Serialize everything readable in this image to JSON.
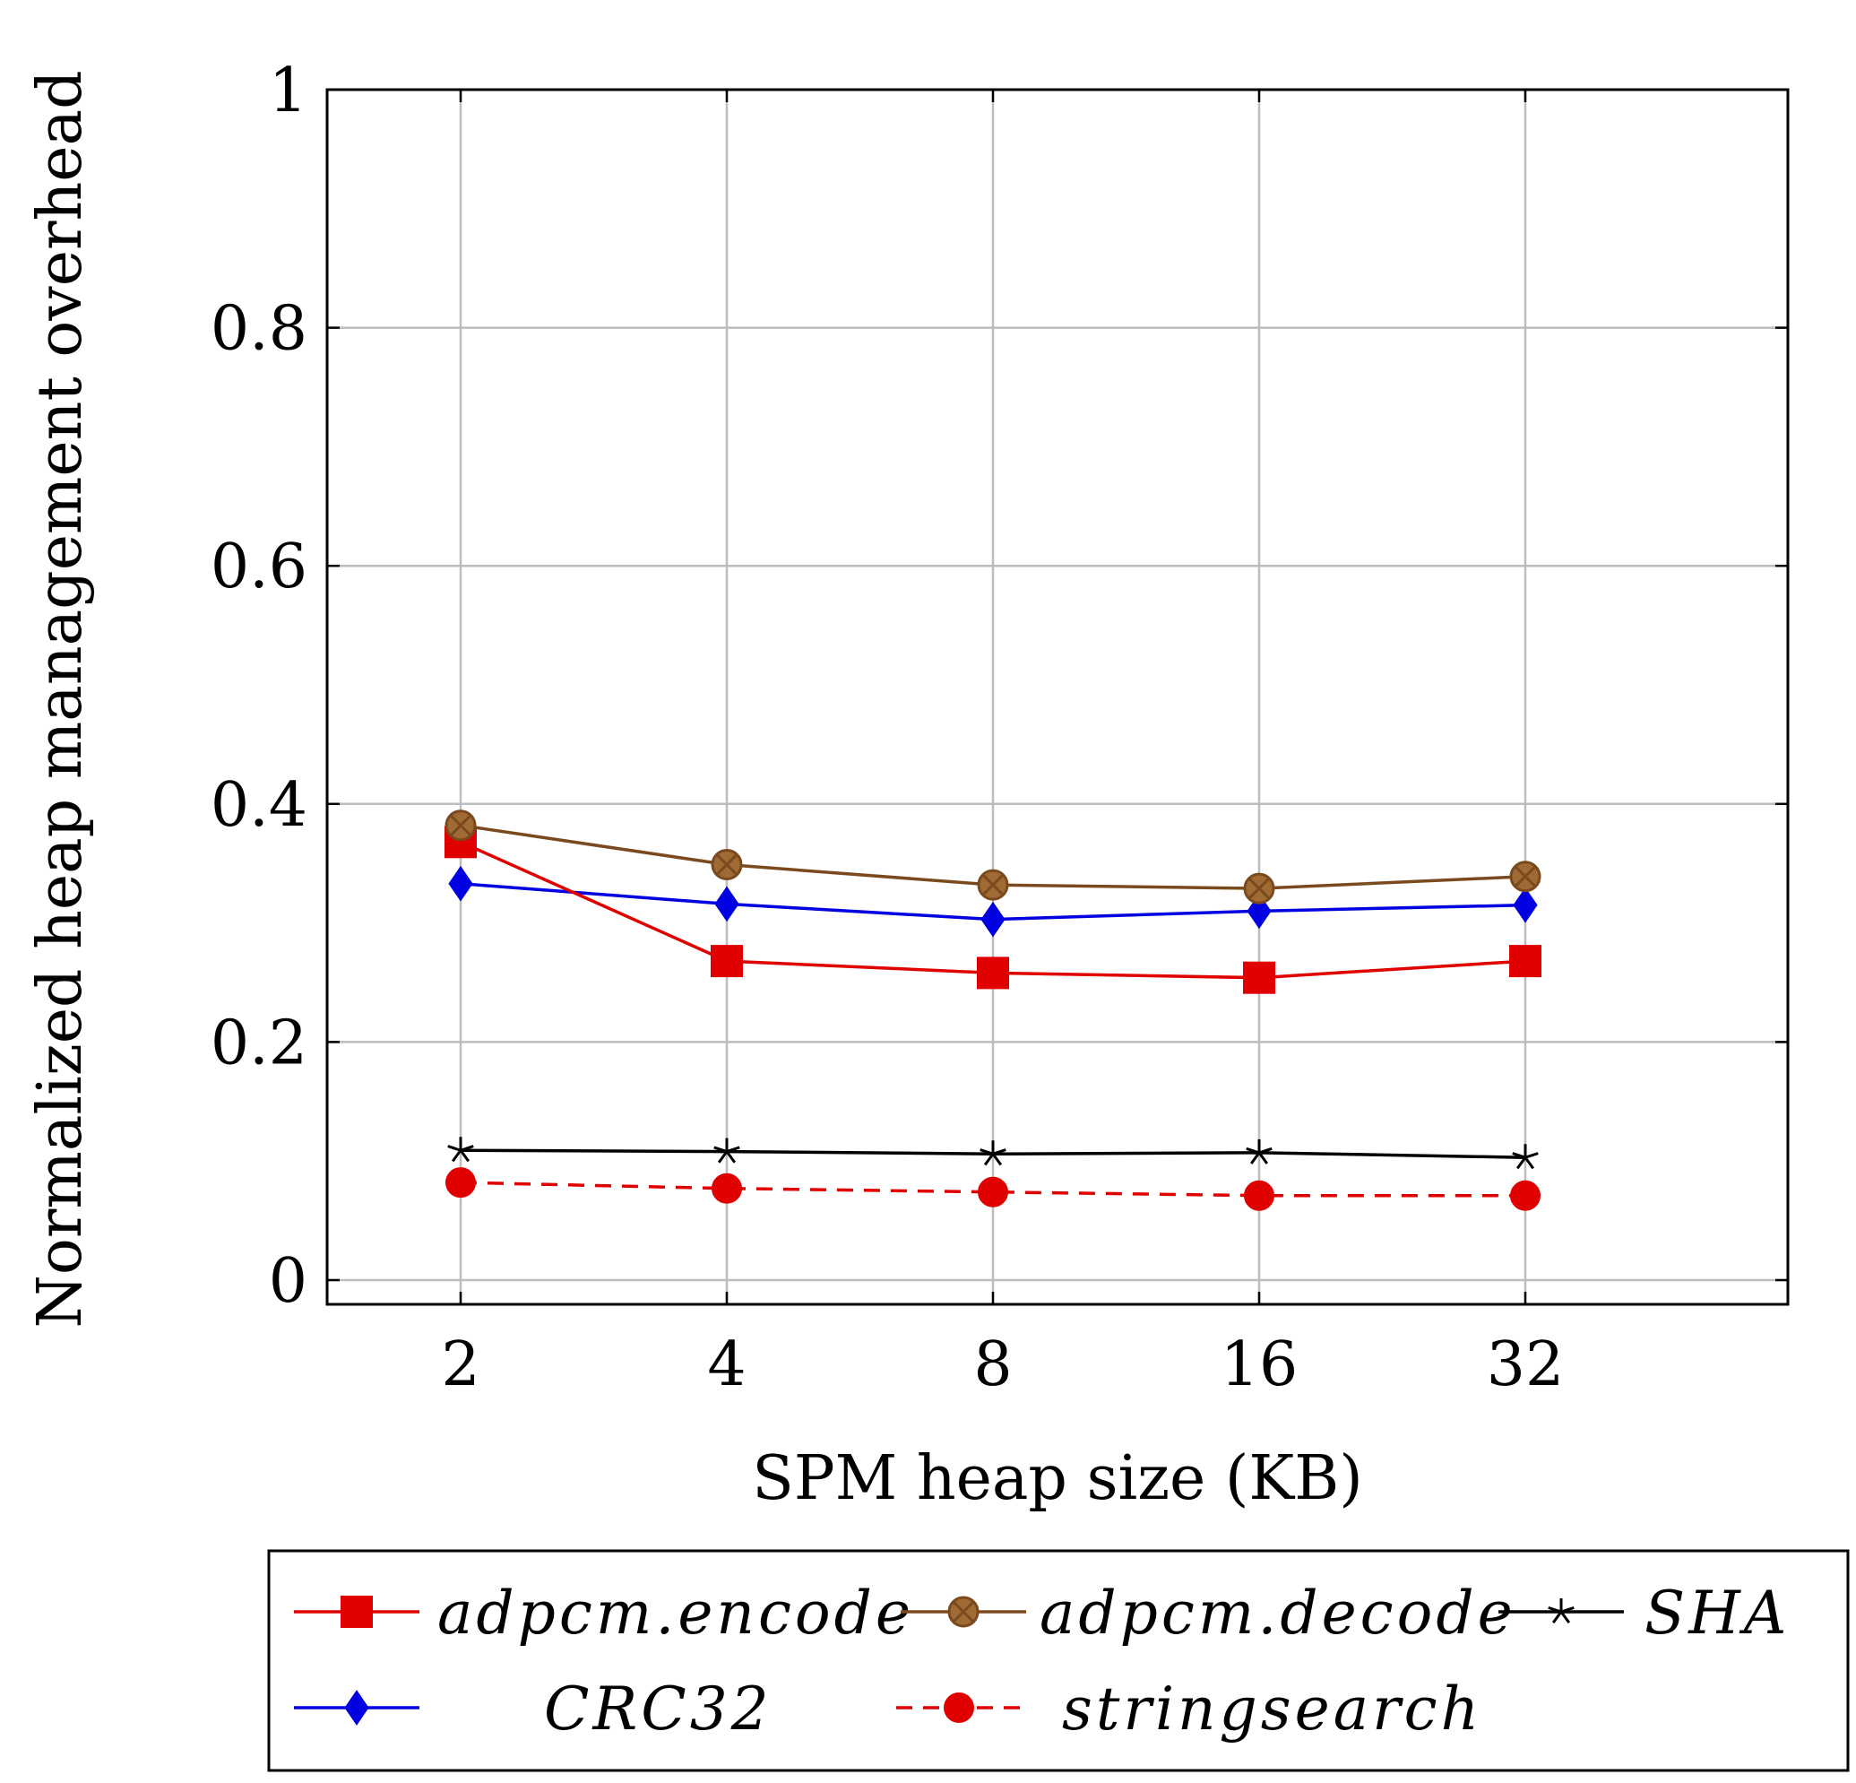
{
  "chart_data": {
    "type": "line",
    "title": "",
    "xlabel": "SPM heap size (KB)",
    "ylabel": "Normalized heap management overhead",
    "categories": [
      "2",
      "4",
      "8",
      "16",
      "32"
    ],
    "ylim": [
      0,
      1
    ],
    "yticks": [
      "0",
      "0.2",
      "0.4",
      "0.6",
      "0.8",
      "1"
    ],
    "ytick_values": [
      0,
      0.2,
      0.4,
      0.6,
      0.8,
      1
    ],
    "grid": true,
    "legend_position": "bottom",
    "series": [
      {
        "name": "adpcm.encode",
        "color": "#e00000",
        "marker": "square",
        "dash": "solid",
        "values": [
          0.368,
          0.268,
          0.258,
          0.254,
          0.268
        ]
      },
      {
        "name": "adpcm.decode",
        "color": "#7a4a1e",
        "marker": "circle-x",
        "dash": "solid",
        "values": [
          0.382,
          0.349,
          0.332,
          0.329,
          0.339
        ]
      },
      {
        "name": "SHA",
        "color": "#000000",
        "marker": "star",
        "dash": "solid",
        "values": [
          0.109,
          0.108,
          0.106,
          0.107,
          0.103
        ]
      },
      {
        "name": "CRC32",
        "color": "#0000e0",
        "marker": "diamond",
        "dash": "solid",
        "values": [
          0.333,
          0.316,
          0.303,
          0.31,
          0.315
        ]
      },
      {
        "name": "stringsearch",
        "color": "#e00000",
        "marker": "circle",
        "dash": "dashed",
        "values": [
          0.082,
          0.077,
          0.074,
          0.071,
          0.071
        ]
      }
    ]
  }
}
